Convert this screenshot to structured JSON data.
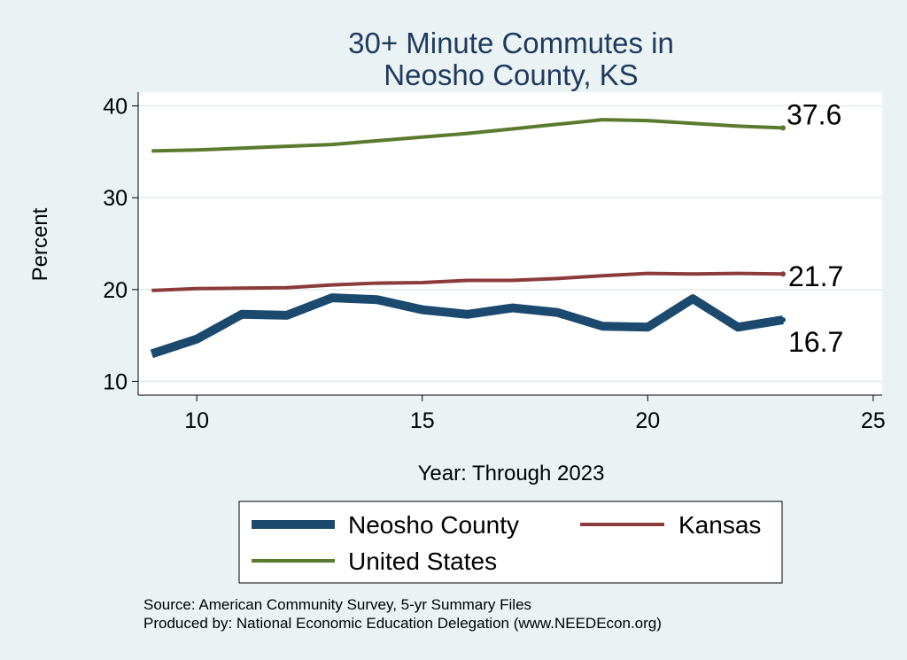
{
  "chart_data": {
    "type": "line",
    "title": [
      "30+ Minute Commutes in",
      "Neosho County, KS"
    ],
    "xlabel": "Year: Through 2023",
    "ylabel": "Percent",
    "xlim": [
      8.7,
      25.2
    ],
    "ylim": [
      8.5,
      41.5
    ],
    "xticks": [
      10,
      15,
      20,
      25
    ],
    "yticks": [
      10,
      20,
      30,
      40
    ],
    "x": [
      9,
      10,
      11,
      12,
      13,
      14,
      15,
      16,
      17,
      18,
      19,
      20,
      21,
      22,
      23
    ],
    "series": [
      {
        "name": "Neosho County",
        "color": "#1b4a6e",
        "values": [
          13.0,
          14.6,
          17.3,
          17.2,
          19.1,
          18.9,
          17.8,
          17.3,
          18.0,
          17.5,
          16.0,
          15.9,
          19.0,
          15.9,
          16.7
        ],
        "end_label": "16.7"
      },
      {
        "name": "Kansas",
        "color": "#8c3b3b",
        "values": [
          19.9,
          20.1,
          20.15,
          20.2,
          20.5,
          20.7,
          20.75,
          21.0,
          21.0,
          21.2,
          21.5,
          21.75,
          21.7,
          21.75,
          21.7
        ],
        "end_label": "21.7"
      },
      {
        "name": "United States",
        "color": "#5a7a2e",
        "values": [
          35.1,
          35.2,
          35.4,
          35.6,
          35.8,
          36.2,
          36.6,
          37.0,
          37.5,
          38.0,
          38.5,
          38.4,
          38.1,
          37.8,
          37.6
        ],
        "end_label": "37.6"
      }
    ],
    "legend": {
      "position": "bottom",
      "entries": [
        "Neosho County",
        "Kansas",
        "United States"
      ]
    },
    "notes": [
      "Source: American Community Survey, 5-yr Summary Files",
      "Produced by: National Economic Education Delegation (www.NEEDEcon.org)"
    ]
  }
}
